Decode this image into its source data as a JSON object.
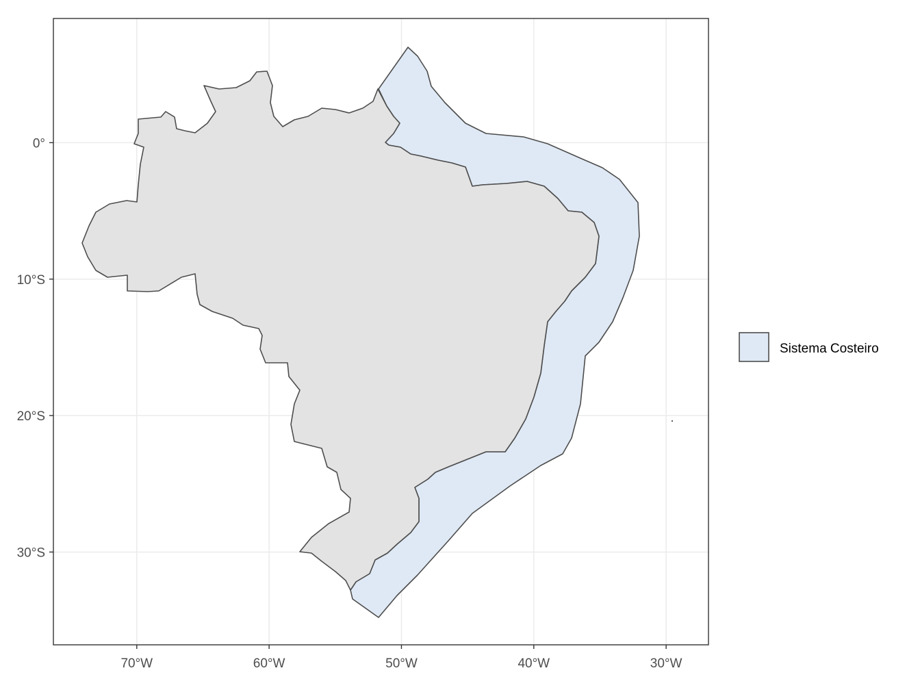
{
  "map": {
    "x_axis": {
      "ticks": [
        {
          "lon": -70,
          "label": "70°W"
        },
        {
          "lon": -60,
          "label": "60°W"
        },
        {
          "lon": -50,
          "label": "50°W"
        },
        {
          "lon": -40,
          "label": "40°W"
        },
        {
          "lon": -30,
          "label": "30°W"
        }
      ],
      "range": [
        -76.3,
        -26.8
      ]
    },
    "y_axis": {
      "ticks": [
        {
          "lat": 0,
          "label": "0°"
        },
        {
          "lat": -10,
          "label": "10°S"
        },
        {
          "lat": -20,
          "label": "20°S"
        },
        {
          "lat": -30,
          "label": "30°S"
        }
      ],
      "range": [
        -36.8,
        9.1
      ]
    },
    "grid": true,
    "colors": {
      "land_fill": "#e3e3e3",
      "coastal_fill": "#dfe9f5",
      "outline": "#4d4d4d",
      "gridline": "#ebebeb",
      "panel_border": "#333333"
    }
  },
  "legend": {
    "position": "right",
    "items": [
      {
        "label": "Sistema Costeiro",
        "color": "#dfe9f5"
      }
    ]
  }
}
